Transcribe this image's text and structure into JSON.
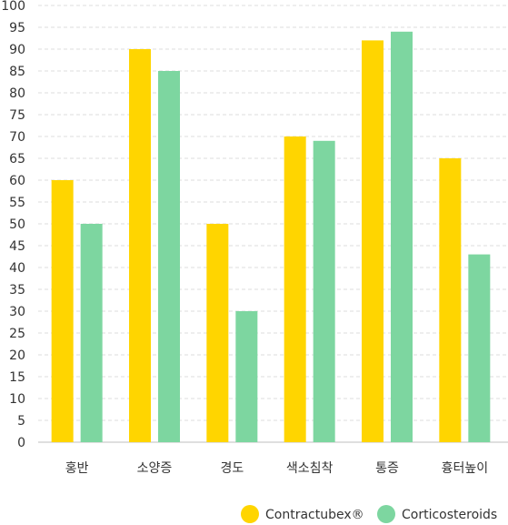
{
  "chart_data": {
    "type": "bar",
    "title": "",
    "xlabel": "",
    "ylabel": "",
    "categories": [
      "홍반",
      "소양증",
      "경도",
      "색소침착",
      "통증",
      "흉터높이"
    ],
    "series": [
      {
        "name": "Contractubex®",
        "color": "#FFD500",
        "values": [
          60,
          90,
          50,
          70,
          92,
          65
        ]
      },
      {
        "name": "Corticosteroids",
        "color": "#7DD6A0",
        "values": [
          50,
          85,
          30,
          69,
          94,
          43
        ]
      }
    ],
    "ylim": [
      0,
      100
    ],
    "yticks": [
      0,
      5,
      10,
      15,
      20,
      25,
      30,
      35,
      40,
      45,
      50,
      55,
      60,
      65,
      70,
      75,
      80,
      85,
      90,
      95,
      100
    ],
    "grid": true,
    "legend_position": "bottom-right"
  }
}
